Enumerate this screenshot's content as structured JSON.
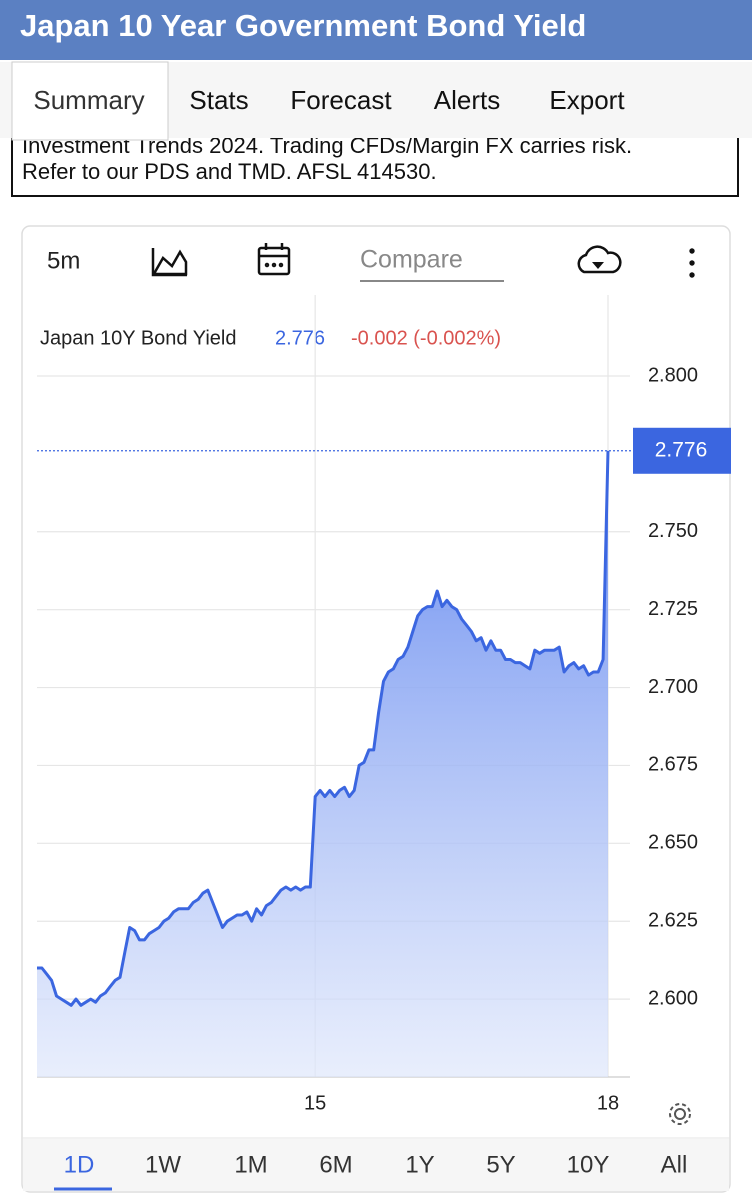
{
  "header": {
    "title": "Japan 10 Year Government Bond Yield"
  },
  "tabs": [
    "Summary",
    "Stats",
    "Forecast",
    "Alerts",
    "Export"
  ],
  "disclaimer": [
    "Investment Trends 2024. Trading CFDs/Margin FX carries risk.",
    "Refer to our PDS and TMD. AFSL 414530."
  ],
  "toolbar": {
    "interval": "5m",
    "compare": "Compare"
  },
  "chart_data": {
    "type": "area",
    "change": "-0.002 (-0.002%)",
    "categories": [
      null,
      null,
      null,
      null,
      null,
      null,
      null,
      null,
      null,
      null,
      null,
      null,
      null,
      null,
      null,
      null,
      null,
      null,
      null,
      null,
      null,
      null,
      null,
      null,
      null,
      null,
      null,
      null,
      null,
      null,
      null,
      null,
      null,
      null,
      null,
      null,
      null,
      null,
      null,
      null,
      null,
      null,
      null,
      null,
      null,
      null,
      null,
      null,
      null,
      null,
      null,
      null,
      null,
      null,
      null,
      null,
      null,
      "15",
      null,
      null,
      null,
      null,
      null,
      null,
      null,
      null,
      null,
      null,
      null,
      null,
      null,
      null,
      null,
      null,
      null,
      null,
      null,
      null,
      null,
      null,
      null,
      null,
      null,
      null,
      null,
      null,
      null,
      null,
      null,
      null,
      null,
      null,
      null,
      null,
      null,
      null,
      null,
      null,
      null,
      null,
      null,
      null,
      null,
      null,
      null,
      null,
      null,
      null,
      null,
      null,
      null,
      null,
      null,
      null,
      null,
      null,
      null,
      "18"
    ],
    "series": [
      {
        "name": "Japan 10Y Bond Yield",
        "color": "#3b66e0",
        "values": [
          2.61,
          2.61,
          2.608,
          2.606,
          2.601,
          2.6,
          2.599,
          2.598,
          2.6,
          2.598,
          2.599,
          2.6,
          2.599,
          2.601,
          2.602,
          2.604,
          2.606,
          2.607,
          2.615,
          2.623,
          2.622,
          2.619,
          2.619,
          2.621,
          2.622,
          2.623,
          2.625,
          2.626,
          2.628,
          2.629,
          2.629,
          2.629,
          2.631,
          2.632,
          2.634,
          2.635,
          2.631,
          2.627,
          2.623,
          2.625,
          2.626,
          2.627,
          2.627,
          2.628,
          2.625,
          2.629,
          2.627,
          2.63,
          2.631,
          2.633,
          2.635,
          2.636,
          2.635,
          2.636,
          2.635,
          2.636,
          2.636,
          2.665,
          2.667,
          2.665,
          2.667,
          2.665,
          2.667,
          2.668,
          2.665,
          2.667,
          2.675,
          2.676,
          2.68,
          2.68,
          2.692,
          2.702,
          2.705,
          2.706,
          2.709,
          2.71,
          2.713,
          2.718,
          2.723,
          2.725,
          2.726,
          2.726,
          2.731,
          2.726,
          2.728,
          2.726,
          2.725,
          2.722,
          2.72,
          2.718,
          2.715,
          2.716,
          2.712,
          2.715,
          2.712,
          2.712,
          2.709,
          2.709,
          2.708,
          2.708,
          2.707,
          2.706,
          2.712,
          2.711,
          2.712,
          2.712,
          2.712,
          2.713,
          2.705,
          2.707,
          2.708,
          2.706,
          2.707,
          2.704,
          2.705,
          2.705,
          2.709,
          2.776
        ]
      }
    ],
    "ylim": [
      2.575,
      2.826
    ],
    "yticks": [
      {
        "value": 2.6,
        "label": "2.600"
      },
      {
        "value": 2.625,
        "label": "2.625"
      },
      {
        "value": 2.65,
        "label": "2.650"
      },
      {
        "value": 2.675,
        "label": "2.675"
      },
      {
        "value": 2.7,
        "label": "2.700"
      },
      {
        "value": 2.725,
        "label": "2.725"
      },
      {
        "value": 2.75,
        "label": "2.750"
      },
      {
        "value": 2.8,
        "label": "2.800"
      }
    ],
    "grid": true
  },
  "ranges": [
    "1D",
    "1W",
    "1M",
    "6M",
    "1Y",
    "5Y",
    "10Y",
    "All"
  ]
}
